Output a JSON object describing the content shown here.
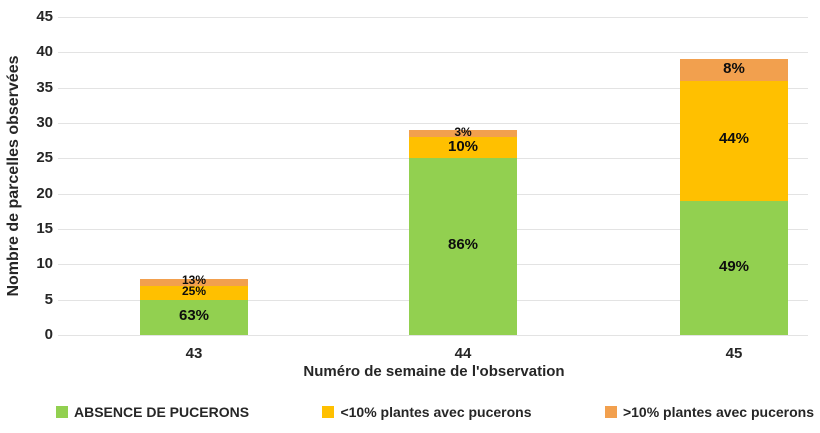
{
  "chart_data": {
    "type": "bar",
    "stacked": true,
    "title": "",
    "xlabel": "Numéro de semaine de l'observation",
    "ylabel": "Nombre de parcelles observées",
    "categories": [
      "43",
      "44",
      "45"
    ],
    "totals": [
      8,
      29,
      39
    ],
    "series": [
      {
        "name": "ABSENCE DE PUCERONS",
        "color": "#92D050",
        "values": [
          5,
          25,
          19
        ],
        "percent_labels": [
          "63%",
          "86%",
          "49%"
        ]
      },
      {
        "name": "<10% plantes avec pucerons",
        "color": "#FFC000",
        "values": [
          2,
          3,
          17
        ],
        "percent_labels": [
          "25%",
          "10%",
          "44%"
        ]
      },
      {
        "name": ">10% plantes avec pucerons",
        "color": "#F2A04E",
        "values": [
          1,
          1,
          3
        ],
        "percent_labels": [
          "13%",
          "3%",
          "8%"
        ]
      }
    ],
    "ylim": [
      0,
      45
    ],
    "ytick_step": 5,
    "grid": true,
    "legend_position": "bottom",
    "colors": {
      "grid": "#E3E3E3",
      "axis_text": "#262626",
      "data_label": "#0D0D0D",
      "background": "#FFFFFF"
    }
  }
}
